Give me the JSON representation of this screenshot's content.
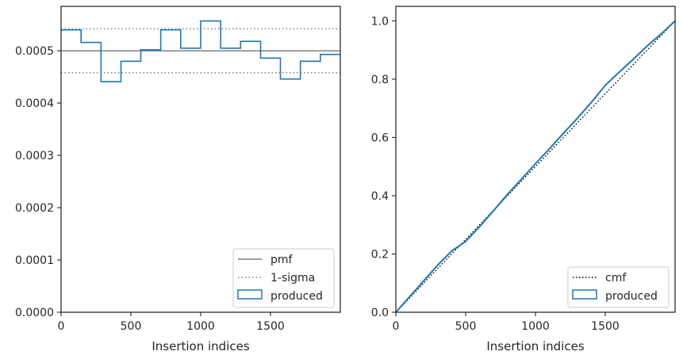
{
  "chart_data": [
    {
      "type": "histogram",
      "xlabel": "Insertion indices",
      "ylabel": "",
      "xlim": [
        0,
        2000
      ],
      "ylim": [
        0,
        0.000585
      ],
      "xticks": [
        0,
        500,
        1000,
        1500
      ],
      "xtick_labels": [
        "0",
        "500",
        "1000",
        "1500"
      ],
      "yticks": [
        0,
        0.0001,
        0.0002,
        0.0003,
        0.0004,
        0.0005
      ],
      "ytick_labels": [
        "0.0000",
        "0.0001",
        "0.0002",
        "0.0003",
        "0.0004",
        "0.0005"
      ],
      "grid": false,
      "legend_position": "lower-right",
      "reference_lines": [
        {
          "name": "pmf",
          "y": 0.0005,
          "style": "solid",
          "color": "#808080"
        },
        {
          "name": "1-sigma",
          "y": 0.000542,
          "style": "dotted",
          "color": "#808080"
        },
        {
          "name": "",
          "y": 0.000458,
          "style": "dotted",
          "color": "#808080"
        }
      ],
      "series": [
        {
          "name": "produced",
          "color": "#1f77b4",
          "bin_edges": [
            0,
            143,
            286,
            429,
            571,
            714,
            857,
            1000,
            1143,
            1286,
            1429,
            1571,
            1714,
            1857,
            2000
          ],
          "values": [
            0.00054,
            0.000516,
            0.000441,
            0.00048,
            0.000502,
            0.00054,
            0.000505,
            0.000557,
            0.000505,
            0.000518,
            0.000486,
            0.000446,
            0.00048,
            0.000493
          ]
        }
      ],
      "legend": [
        "pmf",
        "1-sigma",
        "produced"
      ]
    },
    {
      "type": "line",
      "xlabel": "Insertion indices",
      "ylabel": "",
      "xlim": [
        0,
        2000
      ],
      "ylim": [
        0,
        1.05
      ],
      "xticks": [
        0,
        500,
        1000,
        1500
      ],
      "xtick_labels": [
        "0",
        "500",
        "1000",
        "1500"
      ],
      "yticks": [
        0,
        0.2,
        0.4,
        0.6,
        0.8,
        1.0
      ],
      "ytick_labels": [
        "0.0",
        "0.2",
        "0.4",
        "0.6",
        "0.8",
        "1.0"
      ],
      "grid": false,
      "legend_position": "lower-right",
      "series": [
        {
          "name": "cmf",
          "style": "dotted",
          "color": "#000000",
          "x": [
            0,
            2000
          ],
          "y": [
            0,
            1.0
          ]
        },
        {
          "name": "produced",
          "style": "solid",
          "color": "#1f77b4",
          "x": [
            0,
            100,
            200,
            300,
            400,
            500,
            600,
            700,
            800,
            900,
            1000,
            1100,
            1200,
            1300,
            1400,
            1500,
            1600,
            1700,
            1800,
            1900,
            2000
          ],
          "y": [
            0,
            0.054,
            0.108,
            0.162,
            0.21,
            0.243,
            0.294,
            0.349,
            0.405,
            0.457,
            0.51,
            0.561,
            0.614,
            0.666,
            0.72,
            0.779,
            0.824,
            0.868,
            0.914,
            0.955,
            1.0
          ]
        }
      ],
      "legend": [
        "cmf",
        "produced"
      ]
    }
  ]
}
